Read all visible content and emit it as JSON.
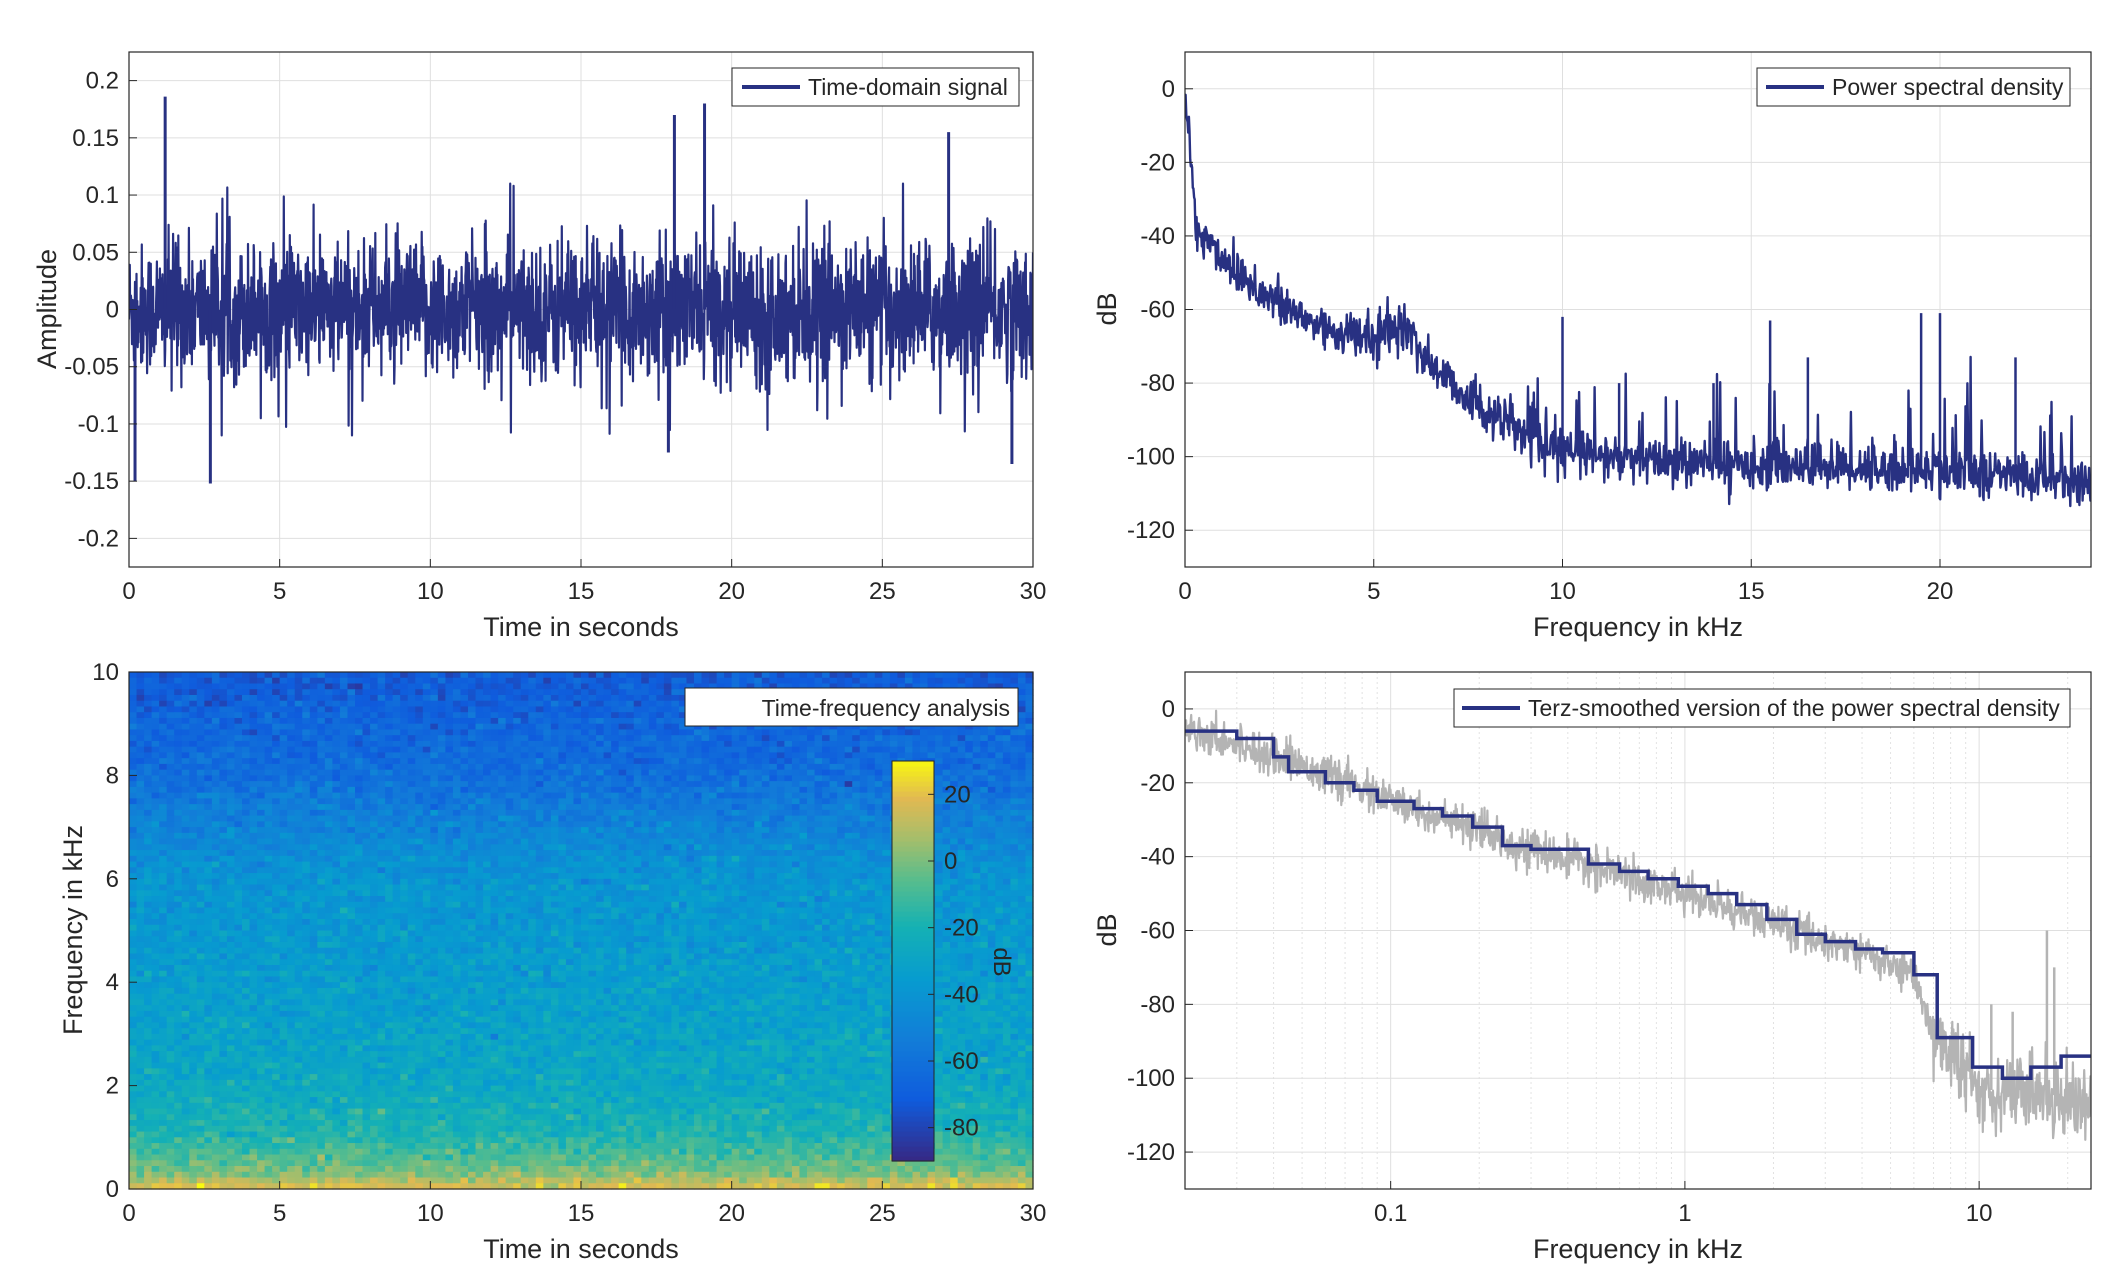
{
  "chart_data": [
    {
      "id": "time-domain",
      "type": "line",
      "xlabel": "Time in seconds",
      "ylabel": "Amplitude",
      "xlim": [
        0,
        30
      ],
      "ylim": [
        -0.225,
        0.225
      ],
      "xticks": [
        0,
        5,
        10,
        15,
        20,
        25,
        30
      ],
      "yticks": [
        -0.2,
        -0.15,
        -0.1,
        -0.05,
        0,
        0.05,
        0.1,
        0.15,
        0.2
      ],
      "ytick_labels": [
        "-0.2",
        "-0.15",
        "-0.1",
        "-0.05",
        "0",
        "0.05",
        "0.1",
        "0.15",
        "0.2"
      ],
      "grid": true,
      "legend": "top-right",
      "series": [
        {
          "name": "Time-domain signal",
          "color": "#283182",
          "envelope_note": "dense noise; amplitude mostly within ±0.07",
          "peaks": [
            {
              "x": 1.2,
              "y": 0.186
            },
            {
              "x": 2.7,
              "y": -0.152
            },
            {
              "x": 0.2,
              "y": -0.15
            },
            {
              "x": 18.1,
              "y": 0.17
            },
            {
              "x": 19.1,
              "y": 0.18
            },
            {
              "x": 17.9,
              "y": -0.125
            },
            {
              "x": 27.2,
              "y": 0.155
            },
            {
              "x": 29.3,
              "y": -0.135
            }
          ]
        }
      ]
    },
    {
      "id": "psd",
      "type": "line",
      "xlabel": "Frequency in kHz",
      "ylabel": "dB",
      "xlim": [
        0,
        24
      ],
      "ylim": [
        -130,
        10
      ],
      "xticks": [
        0,
        5,
        10,
        15,
        20
      ],
      "yticks": [
        -120,
        -100,
        -80,
        -60,
        -40,
        -20,
        0
      ],
      "grid": true,
      "legend": "top-right",
      "series": [
        {
          "name": "Power spectral density",
          "color": "#283182",
          "envelope": [
            [
              0,
              0
            ],
            [
              0.3,
              -38
            ],
            [
              1,
              -46
            ],
            [
              2,
              -55
            ],
            [
              3,
              -62
            ],
            [
              4,
              -66
            ],
            [
              5,
              -68
            ],
            [
              5.8,
              -64
            ],
            [
              6.5,
              -75
            ],
            [
              8,
              -88
            ],
            [
              10,
              -99
            ],
            [
              12,
              -101
            ],
            [
              14,
              -102
            ],
            [
              16,
              -102
            ],
            [
              18,
              -103
            ],
            [
              20,
              -104
            ],
            [
              22,
              -105
            ],
            [
              24,
              -107
            ]
          ],
          "spikes": [
            [
              10,
              -62
            ],
            [
              11.5,
              -80
            ],
            [
              14,
              -80
            ],
            [
              15.5,
              -63
            ],
            [
              16.5,
              -73
            ],
            [
              19.5,
              -61
            ],
            [
              20,
              -61
            ],
            [
              22,
              -73
            ]
          ]
        }
      ]
    },
    {
      "id": "spectrogram",
      "type": "heatmap",
      "xlabel": "Time in seconds",
      "ylabel": "Frequency in kHz",
      "title_box": "Time-frequency analysis",
      "xlim": [
        0,
        30
      ],
      "ylim": [
        0,
        10
      ],
      "xticks": [
        0,
        5,
        10,
        15,
        20,
        25,
        30
      ],
      "yticks": [
        0,
        2,
        4,
        6,
        8,
        10
      ],
      "colorbar": {
        "label": "dB",
        "range": [
          -90,
          30
        ],
        "ticks": [
          -80,
          -60,
          -40,
          -20,
          0,
          20
        ],
        "colormap": "parula"
      },
      "freq_profile_db": [
        [
          0,
          20
        ],
        [
          0.3,
          0
        ],
        [
          1,
          -18
        ],
        [
          2,
          -28
        ],
        [
          4,
          -35
        ],
        [
          6,
          -40
        ],
        [
          7,
          -50
        ],
        [
          8,
          -62
        ],
        [
          10,
          -72
        ]
      ]
    },
    {
      "id": "terz",
      "type": "line",
      "xlabel": "Frequency in kHz",
      "ylabel": "dB",
      "xscale": "log",
      "xlim": [
        0.02,
        24
      ],
      "ylim": [
        -130,
        10
      ],
      "xticks": [
        0.1,
        1,
        10
      ],
      "xtick_labels": [
        "0.1",
        "1",
        "10"
      ],
      "yticks": [
        -120,
        -100,
        -80,
        -60,
        -40,
        -20,
        0
      ],
      "grid": true,
      "legend": "top-right",
      "series": [
        {
          "name": "Terz-smoothed version of the power spectral density",
          "color": "#283182",
          "steps": [
            [
              0.02,
              -6
            ],
            [
              0.03,
              -8
            ],
            [
              0.04,
              -13
            ],
            [
              0.045,
              -17
            ],
            [
              0.06,
              -20
            ],
            [
              0.075,
              -22
            ],
            [
              0.09,
              -25
            ],
            [
              0.12,
              -27
            ],
            [
              0.15,
              -29
            ],
            [
              0.19,
              -32
            ],
            [
              0.24,
              -37
            ],
            [
              0.3,
              -38
            ],
            [
              0.38,
              -38
            ],
            [
              0.47,
              -42
            ],
            [
              0.6,
              -44
            ],
            [
              0.75,
              -46
            ],
            [
              0.95,
              -48
            ],
            [
              1.2,
              -50
            ],
            [
              1.5,
              -53
            ],
            [
              1.9,
              -57
            ],
            [
              2.4,
              -61
            ],
            [
              3,
              -63
            ],
            [
              3.8,
              -65
            ],
            [
              4.7,
              -66
            ],
            [
              6,
              -72
            ],
            [
              7.2,
              -89
            ],
            [
              9.5,
              -97
            ],
            [
              12,
              -100
            ],
            [
              15,
              -97
            ],
            [
              19,
              -94
            ],
            [
              24,
              -94
            ]
          ]
        },
        {
          "name": "",
          "color": "#b4b4b4",
          "envelope": [
            [
              0.02,
              -5
            ],
            [
              0.05,
              -15
            ],
            [
              0.1,
              -25
            ],
            [
              0.3,
              -38
            ],
            [
              0.5,
              -43
            ],
            [
              1,
              -50
            ],
            [
              2,
              -58
            ],
            [
              4,
              -66
            ],
            [
              6,
              -72
            ],
            [
              7,
              -88
            ],
            [
              10,
              -103
            ],
            [
              16,
              -104
            ],
            [
              24,
              -106
            ]
          ],
          "spikes": [
            [
              11,
              -80
            ],
            [
              13,
              -82
            ],
            [
              17,
              -60
            ],
            [
              18,
              -70
            ]
          ]
        }
      ]
    }
  ]
}
